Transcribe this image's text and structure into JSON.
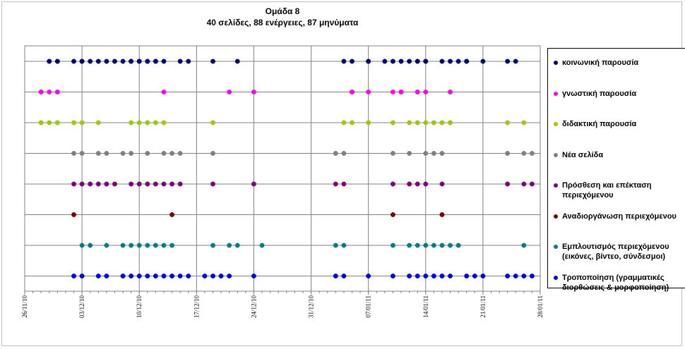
{
  "chart_data": {
    "type": "scatter",
    "title": "Ομάδα 8",
    "subtitle": "40 σελίδες, 88 ενέργειες, 87 μηνύματα",
    "x_axis": {
      "type": "date",
      "range": [
        "26/11/10",
        "28/01/11"
      ],
      "tick_labels": [
        "26/11/10",
        "03/12/10",
        "10/12/10",
        "17/12/10",
        "24/12/10",
        "31/12/10",
        "07/01/11",
        "14/01/11",
        "21/01/11",
        "28/01/11"
      ]
    },
    "grid": "horizontal and vertical major gridlines",
    "legend_position": "right",
    "series": [
      {
        "name": "κοινωνική παρουσία",
        "color": "#000080",
        "dates": [
          "2010-11-29",
          "2010-11-29",
          "2010-11-30",
          "2010-11-30",
          "2010-12-02",
          "2010-12-03",
          "2010-12-03",
          "2010-12-04",
          "2010-12-05",
          "2010-12-06",
          "2010-12-07",
          "2010-12-08",
          "2010-12-09",
          "2010-12-09",
          "2010-12-10",
          "2010-12-10",
          "2010-12-11",
          "2010-12-11",
          "2010-12-12",
          "2010-12-12",
          "2010-12-13",
          "2010-12-15",
          "2010-12-16",
          "2010-12-19",
          "2010-12-22",
          "2011-01-04",
          "2011-01-05",
          "2011-01-07",
          "2011-01-07",
          "2011-01-09",
          "2011-01-10",
          "2011-01-11",
          "2011-01-12",
          "2011-01-13",
          "2011-01-13",
          "2011-01-14",
          "2011-01-14",
          "2011-01-16",
          "2011-01-17",
          "2011-01-18",
          "2011-01-19",
          "2011-01-19",
          "2011-01-21",
          "2011-01-24",
          "2011-01-25"
        ]
      },
      {
        "name": "γνωστική παρουσία",
        "color": "#ff00ff",
        "dates": [
          "2010-11-28",
          "2010-11-28",
          "2010-11-29",
          "2010-11-30",
          "2010-12-13",
          "2010-12-21",
          "2010-12-24",
          "2011-01-05",
          "2011-01-05",
          "2011-01-07",
          "2011-01-10",
          "2011-01-11",
          "2011-01-11",
          "2011-01-13",
          "2011-01-14",
          "2011-01-17"
        ]
      },
      {
        "name": "διδακτική παρουσία",
        "color": "#99cc00",
        "dates": [
          "2010-11-28",
          "2010-11-28",
          "2010-11-29",
          "2010-11-30",
          "2010-12-02",
          "2010-12-03",
          "2010-12-05",
          "2010-12-09",
          "2010-12-10",
          "2010-12-11",
          "2010-12-12",
          "2010-12-13",
          "2010-12-19",
          "2011-01-04",
          "2011-01-05",
          "2011-01-07",
          "2011-01-10",
          "2011-01-12",
          "2011-01-13",
          "2011-01-14",
          "2011-01-15",
          "2011-01-16",
          "2011-01-17",
          "2011-01-17",
          "2011-01-24",
          "2011-01-26"
        ]
      },
      {
        "name": "Νέα σελίδα",
        "color": "#808080",
        "dates": [
          "2010-12-02",
          "2010-12-03",
          "2010-12-05",
          "2010-12-06",
          "2010-12-08",
          "2010-12-09",
          "2010-12-11",
          "2010-12-13",
          "2010-12-14",
          "2010-12-15",
          "2010-12-19",
          "2011-01-03",
          "2011-01-04",
          "2011-01-10",
          "2011-01-12",
          "2011-01-14",
          "2011-01-15",
          "2011-01-16",
          "2011-01-24",
          "2011-01-26",
          "2011-01-27"
        ]
      },
      {
        "name": "Πρόσθεση και επέκταση περιεχόμενου",
        "color": "#800080",
        "dates": [
          "2010-12-02",
          "2010-12-03",
          "2010-12-04",
          "2010-12-05",
          "2010-12-06",
          "2010-12-07",
          "2010-12-09",
          "2010-12-10",
          "2010-12-11",
          "2010-12-12",
          "2010-12-13",
          "2010-12-14",
          "2010-12-15",
          "2010-12-19",
          "2010-12-24",
          "2011-01-03",
          "2011-01-04",
          "2011-01-10",
          "2011-01-12",
          "2011-01-13",
          "2011-01-14",
          "2011-01-16",
          "2011-01-24",
          "2011-01-26",
          "2011-01-27"
        ]
      },
      {
        "name": "Αναδιοργάνωση περιεχόμενου",
        "color": "#800000",
        "dates": [
          "2010-12-02",
          "2010-12-14",
          "2011-01-10",
          "2011-01-16"
        ]
      },
      {
        "name": "Εμπλουτισμός περιεχόμενου (εικόνες, βίντεο, σύνδεσμοι)",
        "color": "#008080",
        "dates": [
          "2010-12-03",
          "2010-12-04",
          "2010-12-06",
          "2010-12-08",
          "2010-12-09",
          "2010-12-10",
          "2010-12-11",
          "2010-12-12",
          "2010-12-13",
          "2010-12-14",
          "2010-12-19",
          "2010-12-21",
          "2010-12-22",
          "2010-12-25",
          "2011-01-03",
          "2011-01-04",
          "2011-01-10",
          "2011-01-12",
          "2011-01-13",
          "2011-01-14",
          "2011-01-15",
          "2011-01-16",
          "2011-01-17",
          "2011-01-18",
          "2011-01-26"
        ]
      },
      {
        "name": "Τροποποίηση (γραμματικές διορθώσεις & μορφοποίηση)",
        "color": "#0000ff",
        "dates": [
          "2010-12-02",
          "2010-12-03",
          "2010-12-05",
          "2010-12-06",
          "2010-12-08",
          "2010-12-09",
          "2010-12-10",
          "2010-12-11",
          "2010-12-12",
          "2010-12-13",
          "2010-12-14",
          "2010-12-15",
          "2010-12-16",
          "2010-12-18",
          "2010-12-19",
          "2010-12-20",
          "2010-12-21",
          "2010-12-24",
          "2011-01-03",
          "2011-01-04",
          "2011-01-07",
          "2011-01-10",
          "2011-01-12",
          "2011-01-13",
          "2011-01-14",
          "2011-01-15",
          "2011-01-16",
          "2011-01-17",
          "2011-01-19",
          "2011-01-20",
          "2011-01-21",
          "2011-01-24",
          "2011-01-25",
          "2011-01-26",
          "2011-01-27"
        ]
      }
    ]
  }
}
